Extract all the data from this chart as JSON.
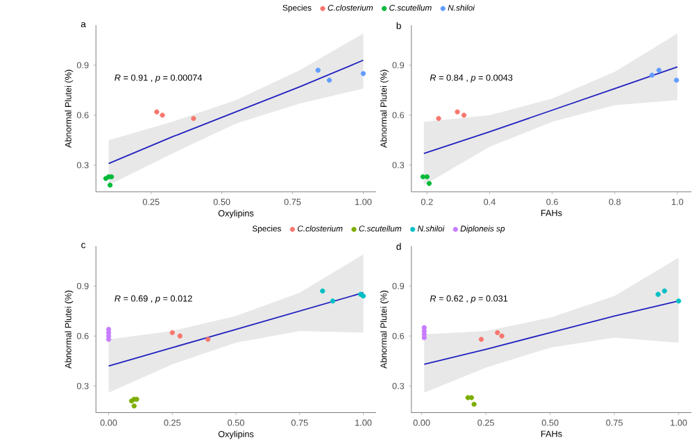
{
  "chart_data": [
    {
      "type": "scatter",
      "title": "a",
      "xlabel": "Oxylipins",
      "ylabel": "Abnormal Plutei (%)",
      "legend_title": "Species",
      "legend": "top",
      "marker": "circle",
      "xlim": [
        0.055,
        1.045
      ],
      "ylim": [
        0.14,
        1.14
      ],
      "xticks": [
        {
          "value": 0.25,
          "label": "0.25"
        },
        {
          "value": 0.5,
          "label": "0.50"
        },
        {
          "value": 0.75,
          "label": "0.75"
        },
        {
          "value": 1.0,
          "label": "1.00"
        }
      ],
      "yticks": [
        0.3,
        0.6,
        0.9
      ],
      "annotations": [
        "*R* = 0.91 , *p* = 0.00074"
      ],
      "series": [
        {
          "name": "C.closterium",
          "color": "#f8766d",
          "x": [
            0.27,
            0.29,
            0.4
          ],
          "values": [
            0.62,
            0.6,
            0.58
          ]
        },
        {
          "name": "C.scutellum",
          "color": "#00ba38",
          "x": [
            0.09,
            0.1,
            0.11,
            0.105
          ],
          "values": [
            0.22,
            0.23,
            0.23,
            0.18
          ]
        },
        {
          "name": "N.shiloi",
          "color": "#619cff",
          "x": [
            0.84,
            0.88,
            1.0
          ],
          "values": [
            0.87,
            0.81,
            0.85
          ]
        },
        {
          "type": "line",
          "marker": "none",
          "color": "#2020c0",
          "x": [
            0.1,
            0.325,
            0.55,
            0.775,
            1.0
          ],
          "values": [
            0.31,
            0.47,
            0.62,
            0.77,
            0.93
          ],
          "lower": [
            0.18,
            0.37,
            0.55,
            0.67,
            0.76
          ],
          "upper": [
            0.45,
            0.56,
            0.69,
            0.87,
            1.09
          ]
        }
      ]
    },
    {
      "type": "scatter",
      "title": "b",
      "xlabel": "FAHs",
      "ylabel": "Abnormal Plutei (%)",
      "marker": "circle",
      "xlim": [
        0.15,
        1.045
      ],
      "ylim": [
        0.14,
        1.14
      ],
      "xticks": [
        {
          "value": 0.2,
          "label": "0.2"
        },
        {
          "value": 0.4,
          "label": "0.4"
        },
        {
          "value": 0.6,
          "label": "0.6"
        },
        {
          "value": 0.8,
          "label": "0.8"
        },
        {
          "value": 1.0,
          "label": "1.0"
        }
      ],
      "yticks": [
        0.3,
        0.6,
        0.9
      ],
      "annotations": [
        "*R* = 0.84 , *p* = 0.0043"
      ],
      "series": [
        {
          "color": "#f8766d",
          "x": [
            0.237,
            0.297,
            0.318
          ],
          "values": [
            0.58,
            0.62,
            0.6
          ]
        },
        {
          "color": "#00ba38",
          "x": [
            0.187,
            0.2,
            0.207
          ],
          "values": [
            0.23,
            0.23,
            0.19
          ]
        },
        {
          "color": "#619cff",
          "x": [
            0.919,
            0.941,
            0.997
          ],
          "values": [
            0.84,
            0.87,
            0.81
          ]
        },
        {
          "type": "line",
          "marker": "none",
          "color": "#2020c0",
          "x": [
            0.19,
            0.4,
            0.6,
            0.8,
            1.0
          ],
          "values": [
            0.37,
            0.5,
            0.63,
            0.76,
            0.89
          ],
          "lower": [
            0.18,
            0.41,
            0.56,
            0.66,
            0.69
          ],
          "upper": [
            0.56,
            0.6,
            0.7,
            0.86,
            1.09
          ]
        }
      ]
    },
    {
      "type": "scatter",
      "title": "c",
      "xlabel": "Oxylipins",
      "ylabel": "Abnormal Plutei (%)",
      "legend_title": "Species",
      "legend": "top",
      "marker": "circle",
      "xlim": [
        -0.05,
        1.05
      ],
      "ylim": [
        0.14,
        1.14
      ],
      "xticks": [
        {
          "value": 0,
          "label": "0.00"
        },
        {
          "value": 0.25,
          "label": "0.25"
        },
        {
          "value": 0.5,
          "label": "0.50"
        },
        {
          "value": 0.75,
          "label": "0.75"
        },
        {
          "value": 1.0,
          "label": "1.00"
        }
      ],
      "yticks": [
        0.3,
        0.6,
        0.9
      ],
      "annotations": [
        "*R* = 0.69 , *p* = 0.012"
      ],
      "series": [
        {
          "name": "C.closterium",
          "color": "#f8766d",
          "x": [
            0.25,
            0.28,
            0.39
          ],
          "values": [
            0.62,
            0.6,
            0.58
          ]
        },
        {
          "name": "C.scutellum",
          "color": "#7cae00",
          "x": [
            0.09,
            0.1,
            0.11,
            0.1
          ],
          "values": [
            0.21,
            0.22,
            0.22,
            0.18
          ]
        },
        {
          "name": "N.shiloi",
          "color": "#00bfc4",
          "x": [
            0.84,
            0.88,
            0.99,
            1.0
          ],
          "values": [
            0.87,
            0.81,
            0.85,
            0.84
          ]
        },
        {
          "name": "Diploneis sp",
          "color": "#c77cff",
          "x": [
            0,
            0,
            0,
            0
          ],
          "values": [
            0.64,
            0.62,
            0.6,
            0.58
          ]
        },
        {
          "type": "line",
          "marker": "none",
          "color": "#2020c0",
          "x": [
            0,
            0.25,
            0.5,
            0.75,
            1.0
          ],
          "values": [
            0.42,
            0.53,
            0.64,
            0.75,
            0.86
          ],
          "lower": [
            0.26,
            0.43,
            0.56,
            0.63,
            0.62
          ],
          "upper": [
            0.58,
            0.63,
            0.72,
            0.86,
            1.09
          ]
        }
      ]
    },
    {
      "type": "scatter",
      "title": "d",
      "xlabel": "FAHs",
      "ylabel": "Abnormal Plutei (%)",
      "marker": "circle",
      "xlim": [
        -0.04,
        1.05
      ],
      "ylim": [
        0.14,
        1.14
      ],
      "xticks": [
        {
          "value": 0,
          "label": "0.00"
        },
        {
          "value": 0.25,
          "label": "0.25"
        },
        {
          "value": 0.5,
          "label": "0.50"
        },
        {
          "value": 0.75,
          "label": "0.75"
        },
        {
          "value": 1.0,
          "label": "1.00"
        }
      ],
      "yticks": [
        0.3,
        0.6,
        0.9
      ],
      "annotations": [
        "*R* = 0.62 , *p* = 0.031"
      ],
      "series": [
        {
          "color": "#f8766d",
          "x": [
            0.232,
            0.295,
            0.312
          ],
          "values": [
            0.58,
            0.62,
            0.6
          ]
        },
        {
          "color": "#7cae00",
          "x": [
            0.18,
            0.194,
            0.204
          ],
          "values": [
            0.23,
            0.23,
            0.19
          ]
        },
        {
          "color": "#00bfc4",
          "x": [
            0.92,
            0.945,
            1.0
          ],
          "values": [
            0.85,
            0.87,
            0.81
          ]
        },
        {
          "color": "#c77cff",
          "x": [
            0.01,
            0.01,
            0.01,
            0.01
          ],
          "values": [
            0.65,
            0.63,
            0.61,
            0.59
          ]
        },
        {
          "type": "line",
          "marker": "none",
          "color": "#2020c0",
          "x": [
            0.01,
            0.25,
            0.5,
            0.75,
            1.0
          ],
          "values": [
            0.43,
            0.52,
            0.62,
            0.72,
            0.81
          ],
          "lower": [
            0.26,
            0.41,
            0.53,
            0.59,
            0.56
          ],
          "upper": [
            0.61,
            0.63,
            0.71,
            0.84,
            1.07
          ]
        }
      ]
    }
  ]
}
